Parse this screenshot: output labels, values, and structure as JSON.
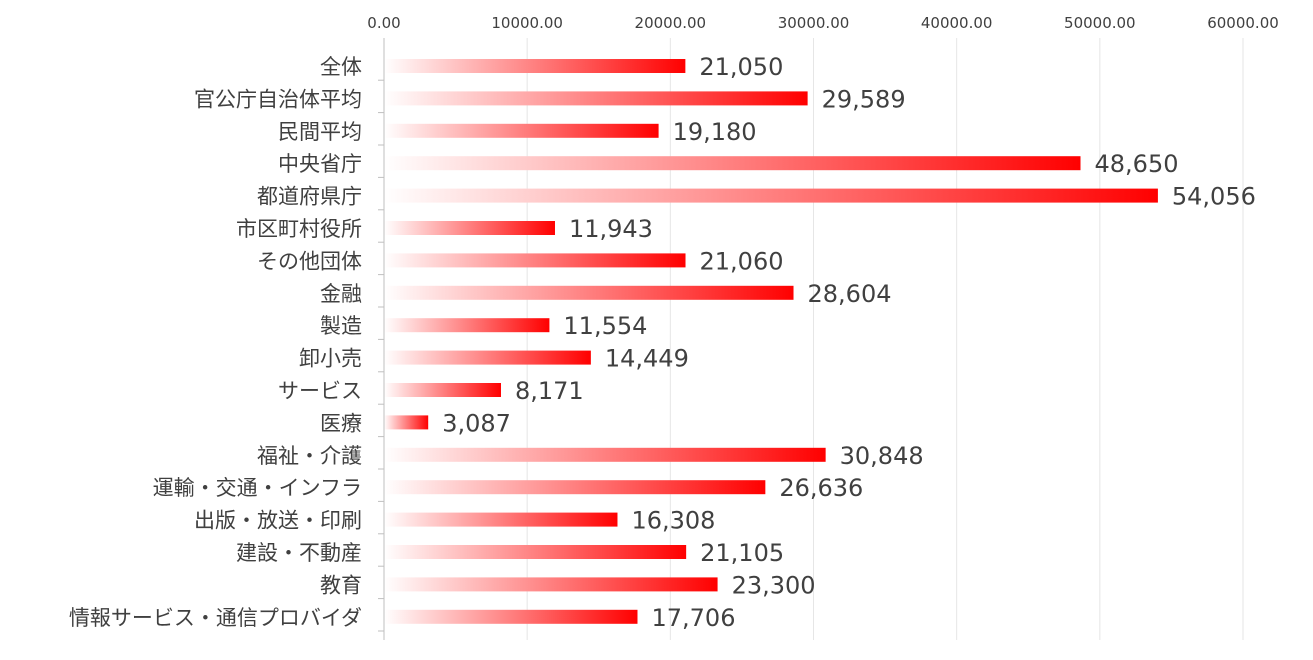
{
  "chart_data": {
    "type": "bar",
    "orientation": "horizontal",
    "categories": [
      "全体",
      "官公庁自治体平均",
      "民間平均",
      "中央省庁",
      "都道府県庁",
      "市区町村役所",
      "その他団体",
      "金融",
      "製造",
      "卸小売",
      "サービス",
      "医療",
      "福祉・介護",
      "運輸・交通・インフラ",
      "出版・放送・印刷",
      "建設・不動産",
      "教育",
      "情報サービス・通信プロバイダ"
    ],
    "values": [
      21050,
      29589,
      19180,
      48650,
      54056,
      11943,
      21060,
      28604,
      11554,
      14449,
      8171,
      3087,
      30848,
      26636,
      16308,
      21105,
      23300,
      17706
    ],
    "value_labels": [
      "21,050",
      "29,589",
      "19,180",
      "48,650",
      "54,056",
      "11,943",
      "21,060",
      "28,604",
      "11,554",
      "14,449",
      "8,171",
      "3,087",
      "30,848",
      "26,636",
      "16,308",
      "21,105",
      "23,300",
      "17,706"
    ],
    "xlim": [
      0,
      60000
    ],
    "x_ticks": [
      0,
      10000,
      20000,
      30000,
      40000,
      50000,
      60000
    ],
    "x_tick_labels": [
      "0.00",
      "10000.00",
      "20000.00",
      "30000.00",
      "40000.00",
      "50000.00",
      "60000.00"
    ],
    "x_axis_position": "top",
    "grid": true,
    "bar_color": "#ff0000",
    "bar_gradient_start": "#ffffff"
  }
}
